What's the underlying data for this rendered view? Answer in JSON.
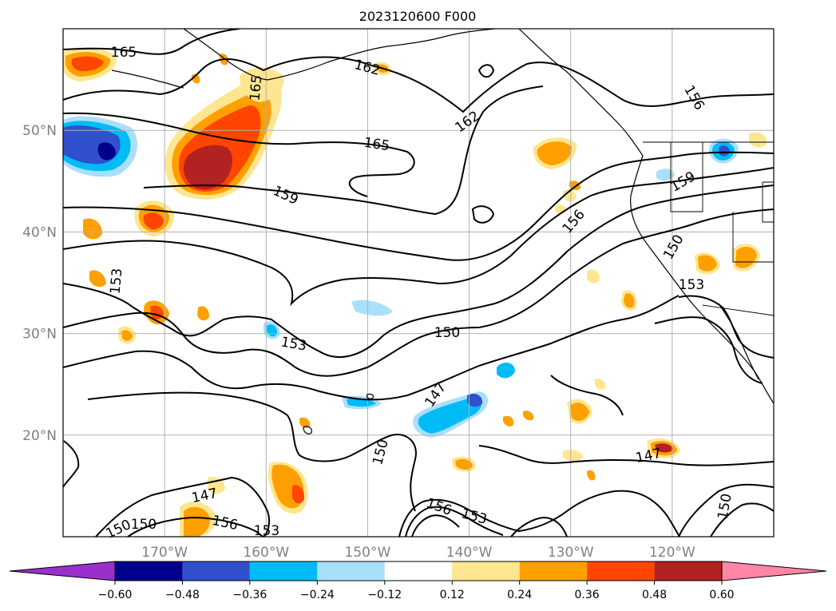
{
  "figure": {
    "title": "2023120600 F000"
  },
  "map": {
    "lat_range": [
      10,
      60
    ],
    "lon_range": [
      -180,
      -110
    ],
    "lat_labels": [
      "20°N",
      "30°N",
      "40°N",
      "50°N"
    ],
    "lat_values": [
      20,
      30,
      40,
      50
    ],
    "lon_labels": [
      "170°W",
      "160°W",
      "150°W",
      "140°W",
      "130°W",
      "120°W"
    ],
    "lon_values": [
      -170,
      -160,
      -150,
      -140,
      -130,
      -120
    ],
    "gridlines": true
  },
  "contours": {
    "color": "#000000",
    "labels": [
      "165",
      "162",
      "165",
      "159",
      "156",
      "159",
      "150",
      "153",
      "150",
      "147",
      "147",
      "150",
      "153",
      "156",
      "153",
      "150",
      "147",
      "150",
      "156",
      "153",
      "162",
      "156",
      "165",
      "153",
      "150"
    ]
  },
  "colorbar": {
    "orientation": "horizontal",
    "extend": "both",
    "ticks": [
      "−0.60",
      "−0.48",
      "−0.36",
      "−0.24",
      "−0.12",
      "0.12",
      "0.24",
      "0.36",
      "0.48",
      "0.60"
    ],
    "colors": [
      "#9a2fcc",
      "#00008c",
      "#3050cc",
      "#00bbf6",
      "#aadffa",
      "#ffffff",
      "#fde68f",
      "#ffa000",
      "#ff4500",
      "#b22222",
      "#ff86a6"
    ]
  },
  "shading_colors": {
    "neg_light": "#aadffa",
    "neg_mid": "#00bbf6",
    "neg_strong": "#3050cc",
    "neg_max": "#00008c",
    "pos_light": "#fde68f",
    "pos_mid": "#ffa000",
    "pos_strong": "#ff4500",
    "pos_max": "#b22222"
  }
}
